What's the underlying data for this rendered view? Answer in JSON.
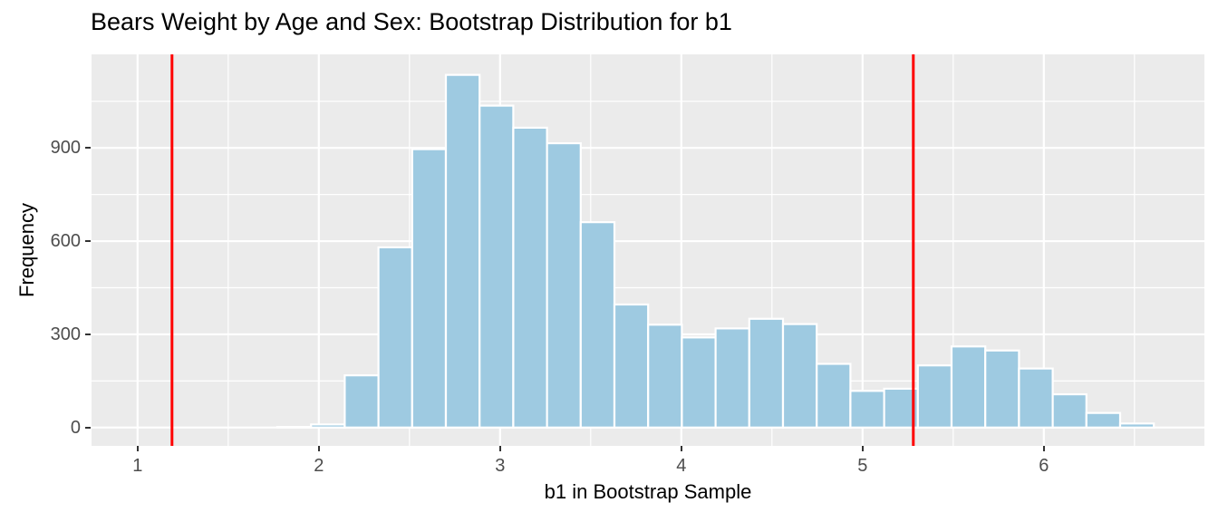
{
  "chart_data": {
    "type": "bar",
    "subtype": "histogram",
    "title": "Bears Weight by Age and Sex: Bootstrap Distribution for b1",
    "xlabel": "b1 in Bootstrap Sample",
    "ylabel": "Frequency",
    "bin_start": 1.771,
    "bin_width": 0.186,
    "counts": [
      2,
      10,
      168,
      580,
      896,
      1135,
      1036,
      965,
      915,
      661,
      396,
      331,
      290,
      319,
      350,
      333,
      205,
      118,
      125,
      200,
      261,
      248,
      190,
      107,
      47,
      13
    ],
    "x_ticks": [
      1,
      2,
      3,
      4,
      5,
      6
    ],
    "y_ticks": [
      0,
      300,
      600,
      900
    ],
    "x_minor": [
      1.5,
      2.5,
      3.5,
      4.5,
      5.5,
      6.5
    ],
    "y_minor": [
      150,
      450,
      750,
      1050
    ],
    "xlim": [
      0.746,
      6.886
    ],
    "ylim": [
      -59,
      1201
    ],
    "vlines": [
      1.19,
      5.28
    ],
    "grid": true,
    "legend": "none",
    "colors": {
      "bar_fill": "#9ECAE1",
      "bar_stroke": "#FFFFFF",
      "vline": "#FF0000",
      "panel_bg": "#EBEBEB",
      "grid": "#FFFFFF",
      "tick_text": "#4D4D4D",
      "text": "#000000",
      "tick_mark": "#333333"
    }
  }
}
